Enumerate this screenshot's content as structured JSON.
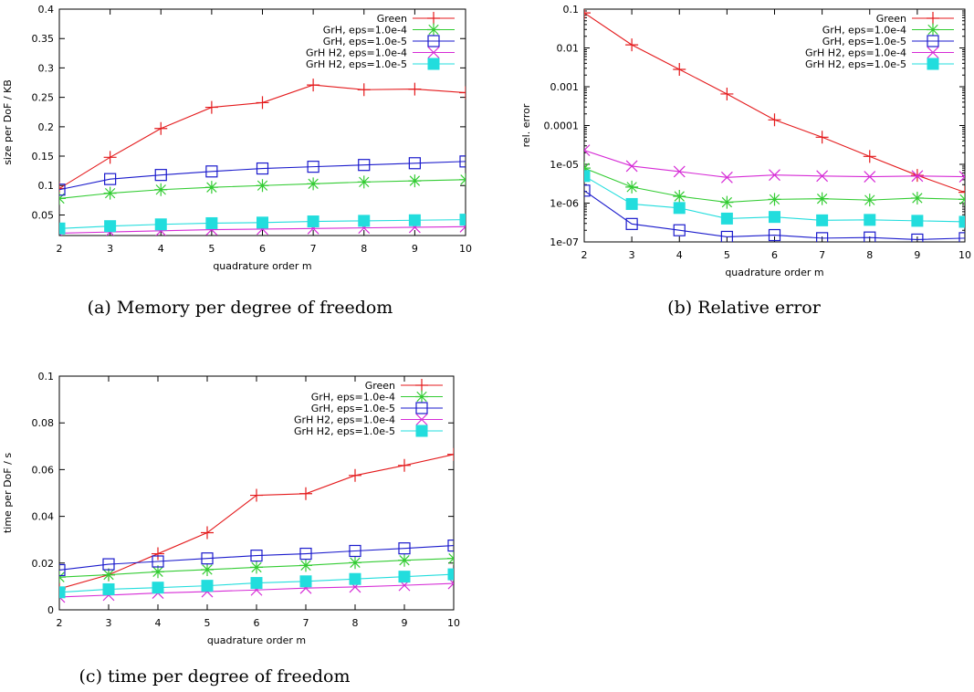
{
  "series_styles": [
    {
      "color": "#e41a1c",
      "marker": "plus"
    },
    {
      "color": "#33cc33",
      "marker": "star"
    },
    {
      "color": "#1a1acc",
      "marker": "square"
    },
    {
      "color": "#d62bd6",
      "marker": "cross"
    },
    {
      "color": "#22dddd",
      "marker": "filled-square"
    }
  ],
  "chart_data": [
    {
      "type": "line",
      "caption": "(a) Memory per degree of freedom",
      "xlabel": "quadrature order m",
      "ylabel": "size per DoF / KB",
      "xlim": [
        2,
        10
      ],
      "ylim": [
        0.015,
        0.4
      ],
      "yscale": "linear",
      "x": [
        2,
        3,
        4,
        5,
        6,
        7,
        8,
        9,
        10
      ],
      "xticks": [
        "2",
        "3",
        "4",
        "5",
        "6",
        "7",
        "8",
        "9",
        "10"
      ],
      "yticks": [
        {
          "v": 0.05,
          "label": "0.05"
        },
        {
          "v": 0.1,
          "label": "0.1"
        },
        {
          "v": 0.15,
          "label": "0.15"
        },
        {
          "v": 0.2,
          "label": "0.2"
        },
        {
          "v": 0.25,
          "label": "0.25"
        },
        {
          "v": 0.3,
          "label": "0.3"
        },
        {
          "v": 0.35,
          "label": "0.35"
        },
        {
          "v": 0.4,
          "label": "0.4"
        }
      ],
      "legend_position": "top-right",
      "series": [
        {
          "name": "Green",
          "values": [
            0.095,
            0.148,
            0.197,
            0.233,
            0.241,
            0.271,
            0.263,
            0.264,
            0.258
          ]
        },
        {
          "name": "GrH, eps=1.0e-4",
          "values": [
            0.078,
            0.087,
            0.093,
            0.097,
            0.1,
            0.103,
            0.106,
            0.108,
            0.11
          ]
        },
        {
          "name": "GrH, eps=1.0e-5",
          "values": [
            0.093,
            0.111,
            0.118,
            0.124,
            0.129,
            0.132,
            0.135,
            0.138,
            0.141
          ]
        },
        {
          "name": "GrH H2, eps=1.0e-4",
          "values": [
            0.019,
            0.021,
            0.023,
            0.025,
            0.026,
            0.027,
            0.028,
            0.029,
            0.03
          ]
        },
        {
          "name": "GrH H2, eps=1.0e-5",
          "values": [
            0.027,
            0.031,
            0.034,
            0.036,
            0.037,
            0.039,
            0.04,
            0.041,
            0.042
          ]
        }
      ]
    },
    {
      "type": "line",
      "caption": "(b) Relative error",
      "xlabel": "quadrature order m",
      "ylabel": "rel. error",
      "xlim": [
        2,
        10
      ],
      "ylim": [
        1e-07,
        0.1
      ],
      "yscale": "log",
      "x": [
        2,
        3,
        4,
        5,
        6,
        7,
        8,
        9,
        10
      ],
      "xticks": [
        "2",
        "3",
        "4",
        "5",
        "6",
        "7",
        "8",
        "9",
        "10"
      ],
      "yticks": [
        {
          "v": 1e-07,
          "label": "1e-07"
        },
        {
          "v": 1e-06,
          "label": "1e-06"
        },
        {
          "v": 1e-05,
          "label": "1e-05"
        },
        {
          "v": 0.0001,
          "label": "0.0001"
        },
        {
          "v": 0.001,
          "label": "0.001"
        },
        {
          "v": 0.01,
          "label": "0.01"
        },
        {
          "v": 0.1,
          "label": "0.1"
        }
      ],
      "legend_position": "top-right",
      "series": [
        {
          "name": "Green",
          "values": [
            0.08,
            0.012,
            0.0028,
            0.00065,
            0.00014,
            5e-05,
            1.6e-05,
            5.2e-06,
            1.9e-06
          ]
        },
        {
          "name": "GrH, eps=1.0e-4",
          "values": [
            8e-06,
            2.6e-06,
            1.5e-06,
            1.05e-06,
            1.25e-06,
            1.3e-06,
            1.2e-06,
            1.35e-06,
            1.25e-06
          ]
        },
        {
          "name": "GrH, eps=1.0e-5",
          "values": [
            2.1e-06,
            2.9e-07,
            2e-07,
            1.35e-07,
            1.5e-07,
            1.25e-07,
            1.3e-07,
            1.15e-07,
            1.25e-07
          ]
        },
        {
          "name": "GrH H2, eps=1.0e-4",
          "values": [
            2.3e-05,
            9e-06,
            6.5e-06,
            4.6e-06,
            5.3e-06,
            5e-06,
            4.8e-06,
            5e-06,
            4.8e-06
          ]
        },
        {
          "name": "GrH H2, eps=1.0e-5",
          "values": [
            5e-06,
            9.5e-07,
            7.5e-07,
            4e-07,
            4.4e-07,
            3.6e-07,
            3.7e-07,
            3.5e-07,
            3.3e-07
          ]
        }
      ]
    },
    {
      "type": "line",
      "caption": "(c) time per degree of freedom",
      "xlabel": "quadrature order m",
      "ylabel": "time per DoF / s",
      "xlim": [
        2,
        10
      ],
      "ylim": [
        0,
        0.1
      ],
      "yscale": "linear",
      "x": [
        2,
        3,
        4,
        5,
        6,
        7,
        8,
        9,
        10
      ],
      "xticks": [
        "2",
        "3",
        "4",
        "5",
        "6",
        "7",
        "8",
        "9",
        "10"
      ],
      "yticks": [
        {
          "v": 0,
          "label": "0"
        },
        {
          "v": 0.02,
          "label": "0.02"
        },
        {
          "v": 0.04,
          "label": "0.04"
        },
        {
          "v": 0.06,
          "label": "0.06"
        },
        {
          "v": 0.08,
          "label": "0.08"
        },
        {
          "v": 0.1,
          "label": "0.1"
        }
      ],
      "legend_position": "top-right",
      "series": [
        {
          "name": "Green",
          "values": [
            0.009,
            0.015,
            0.024,
            0.033,
            0.049,
            0.0497,
            0.0575,
            0.0618,
            0.0665
          ]
        },
        {
          "name": "GrH, eps=1.0e-4",
          "values": [
            0.014,
            0.015,
            0.0163,
            0.0172,
            0.0182,
            0.019,
            0.0202,
            0.0212,
            0.022
          ]
        },
        {
          "name": "GrH, eps=1.0e-5",
          "values": [
            0.017,
            0.0195,
            0.0207,
            0.022,
            0.0232,
            0.024,
            0.0252,
            0.0263,
            0.0275
          ]
        },
        {
          "name": "GrH H2, eps=1.0e-4",
          "values": [
            0.0055,
            0.0063,
            0.0072,
            0.0078,
            0.0085,
            0.0093,
            0.0098,
            0.0105,
            0.0113
          ]
        },
        {
          "name": "GrH H2, eps=1.0e-5",
          "values": [
            0.0075,
            0.0088,
            0.0095,
            0.0103,
            0.0115,
            0.0122,
            0.0132,
            0.0142,
            0.0152
          ]
        }
      ]
    }
  ]
}
